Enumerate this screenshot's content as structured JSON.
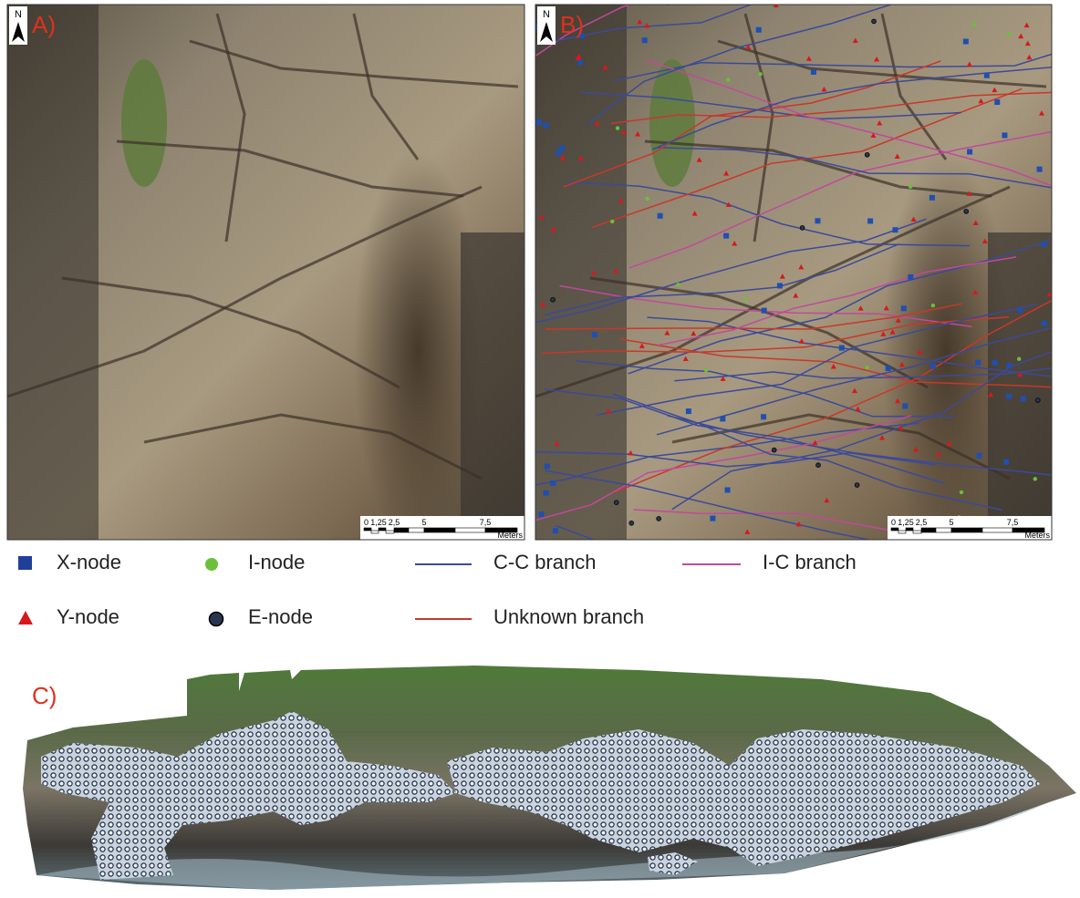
{
  "panels": [
    {
      "label": "A)",
      "north": "N",
      "scale": {
        "ticks": [
          "0",
          "1,25",
          "2,5",
          "5",
          "7,5"
        ],
        "unit": "Meters"
      }
    },
    {
      "label": "B)",
      "north": "N",
      "scale": {
        "ticks": [
          "0",
          "1,25",
          "2,5",
          "5",
          "7,5"
        ],
        "unit": "Meters"
      }
    },
    {
      "label": "C)"
    }
  ],
  "legend": [
    {
      "label": "X-node"
    },
    {
      "label": "I-node"
    },
    {
      "label": "C-C branch"
    },
    {
      "label": "I-C branch"
    },
    {
      "label": "Y-node"
    },
    {
      "label": "E-node"
    },
    {
      "label": "Unknown branch"
    }
  ]
}
